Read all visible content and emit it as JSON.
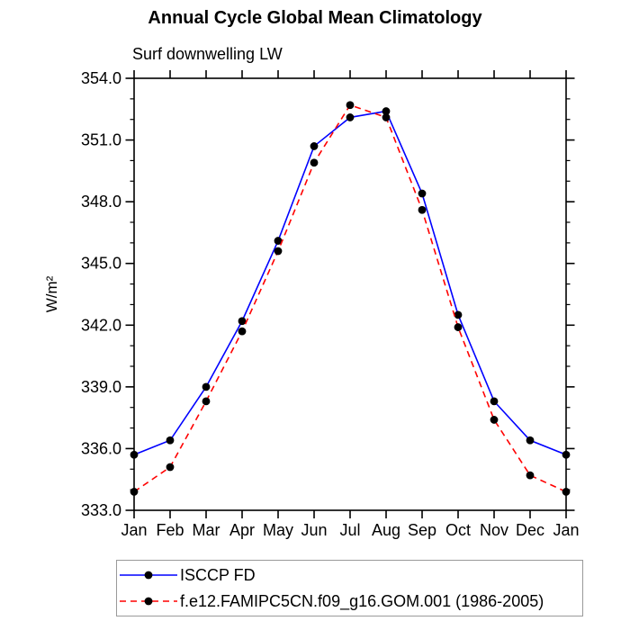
{
  "title": "Annual Cycle Global Mean Climatology",
  "subtitle": "Surf downwelling LW",
  "ylabel": "W/m²",
  "chart_data": {
    "type": "line",
    "x_categories": [
      "Jan",
      "Feb",
      "Mar",
      "Apr",
      "May",
      "Jun",
      "Jul",
      "Aug",
      "Sep",
      "Oct",
      "Nov",
      "Dec",
      "Jan"
    ],
    "ylim": [
      333.0,
      354.0
    ],
    "y_major_step": 3.0,
    "y_minor_step": 1.0,
    "y_tick_labels": [
      "333.0",
      "336.0",
      "339.0",
      "342.0",
      "345.0",
      "348.0",
      "351.0",
      "354.0"
    ],
    "grid": false,
    "legend_position": "bottom-left",
    "axis_color": "#000000",
    "marker_color": "#000000",
    "series": [
      {
        "name": "ISCCP FD",
        "color": "#0000ff",
        "line_style": "solid",
        "marker": "filled-circle",
        "values": [
          335.7,
          336.4,
          339.0,
          342.2,
          346.1,
          350.7,
          352.1,
          352.4,
          348.4,
          342.5,
          338.3,
          336.4,
          335.7
        ]
      },
      {
        "name": "f.e12.FAMIPC5CN.f09_g16.GOM.001 (1986-2005)",
        "color": "#ff0000",
        "line_style": "dashed",
        "marker": "filled-circle",
        "values": [
          333.9,
          335.1,
          338.3,
          341.7,
          345.6,
          349.9,
          352.7,
          352.1,
          347.6,
          341.9,
          337.4,
          334.7,
          333.9
        ]
      }
    ]
  }
}
